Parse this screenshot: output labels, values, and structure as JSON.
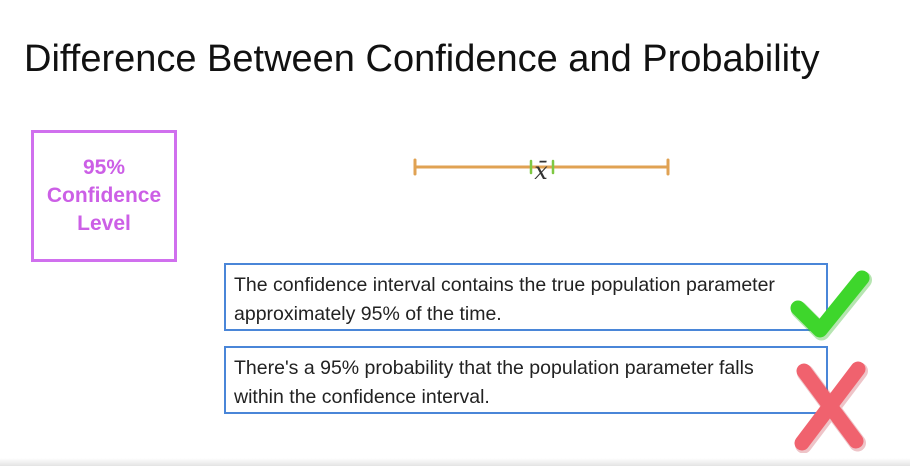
{
  "title": "Difference Between Confidence and Probability",
  "confidence_box": {
    "line1": "95%",
    "line2": "Confidence",
    "line3": "Level",
    "color": "#cc5fe6"
  },
  "interval": {
    "center_label": "x̄",
    "bar_color": "#e0a253",
    "center_tick_color": "#7fc843"
  },
  "statements": [
    {
      "line1": "The confidence interval contains the true population parameter",
      "line2": "approximately 95% of the time.",
      "mark": "check-icon",
      "mark_color": "#3ed62c"
    },
    {
      "line1": "There's a 95% probability that the population parameter falls",
      "line2": "within the confidence interval.",
      "mark": "cross-icon",
      "mark_color": "#f0626e"
    }
  ],
  "border_color": "#4a86d8"
}
